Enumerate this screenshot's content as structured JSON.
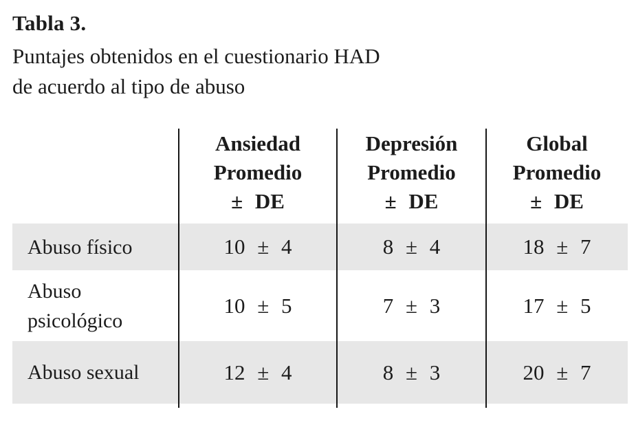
{
  "caption": {
    "title": "Tabla 3.",
    "subtitle_lines": [
      "Puntajes obtenidos en el cuestionario HAD",
      "de acuerdo al tipo de abuso"
    ]
  },
  "table": {
    "columns": [
      {
        "lines": [
          "Ansiedad",
          "Promedio",
          "± DE"
        ]
      },
      {
        "lines": [
          "Depresión",
          "Promedio",
          "± DE"
        ]
      },
      {
        "lines": [
          "Global",
          "Promedio",
          "± DE"
        ]
      }
    ],
    "rows": [
      {
        "label": "Abuso físico",
        "values": [
          "10 ± 4",
          "8 ± 4",
          "18 ± 7"
        ],
        "shaded": true
      },
      {
        "label": "Abuso psicológico",
        "values": [
          "10 ± 5",
          "7 ± 3",
          "17 ± 5"
        ],
        "shaded": false
      },
      {
        "label": "Abuso sexual",
        "values": [
          "12 ± 4",
          "8 ± 3",
          "20 ± 7"
        ],
        "shaded": true
      }
    ]
  },
  "chart_data": {
    "type": "table",
    "title": "Tabla 3. Puntajes obtenidos en el cuestionario HAD de acuerdo al tipo de abuso",
    "column_headers": [
      "",
      "Ansiedad Promedio ± DE",
      "Depresión Promedio ± DE",
      "Global Promedio ± DE"
    ],
    "rows": [
      [
        "Abuso físico",
        "10 ± 4",
        "8 ± 4",
        "18 ± 7"
      ],
      [
        "Abuso psicológico",
        "10 ± 5",
        "7 ± 3",
        "17 ± 5"
      ],
      [
        "Abuso sexual",
        "12 ± 4",
        "8 ± 3",
        "20 ± 7"
      ]
    ]
  },
  "colors": {
    "row_shade": "#e7e7e7",
    "text": "#1c1c1c",
    "divider": "#161616",
    "background": "#ffffff"
  }
}
